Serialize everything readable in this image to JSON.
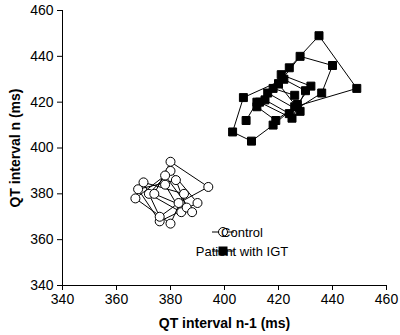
{
  "chart_data": {
    "type": "scatter",
    "x_label": "QT interval n-1 (ms)",
    "y_label": "QT interval n (ms)",
    "xlim": [
      340,
      460
    ],
    "xticks": [
      340,
      360,
      380,
      400,
      420,
      440,
      460
    ],
    "ylim": [
      340,
      460
    ],
    "yticks": [
      340,
      360,
      380,
      400,
      420,
      440,
      460
    ],
    "grid": false,
    "legend": "lower right",
    "series": [
      {
        "name": "Control",
        "color": "#000000",
        "marker": "circle-open",
        "line_style": "solid",
        "x": [
          378,
          384,
          372,
          380,
          390,
          376,
          368,
          382,
          386,
          374,
          380,
          394,
          383,
          376,
          370,
          385,
          380,
          367,
          378,
          388
        ],
        "values": [
          384,
          372,
          380,
          390,
          376,
          368,
          382,
          386,
          374,
          380,
          394,
          383,
          376,
          370,
          385,
          380,
          367,
          378,
          388,
          372
        ]
      },
      {
        "name": "Patient with IGT",
        "color": "#000000",
        "marker": "square",
        "line_style": "solid",
        "x": [
          408,
          412,
          420,
          428,
          416,
          424,
          435,
          449,
          426,
          418,
          410,
          403,
          407,
          422,
          430,
          425,
          413,
          420,
          428,
          440,
          436,
          424,
          415,
          421,
          432,
          427,
          419,
          412,
          418,
          426
        ],
        "values": [
          412,
          420,
          428,
          416,
          424,
          435,
          449,
          426,
          418,
          410,
          403,
          407,
          422,
          430,
          425,
          413,
          420,
          428,
          440,
          436,
          424,
          415,
          421,
          432,
          427,
          419,
          412,
          418,
          426,
          423
        ]
      }
    ]
  }
}
